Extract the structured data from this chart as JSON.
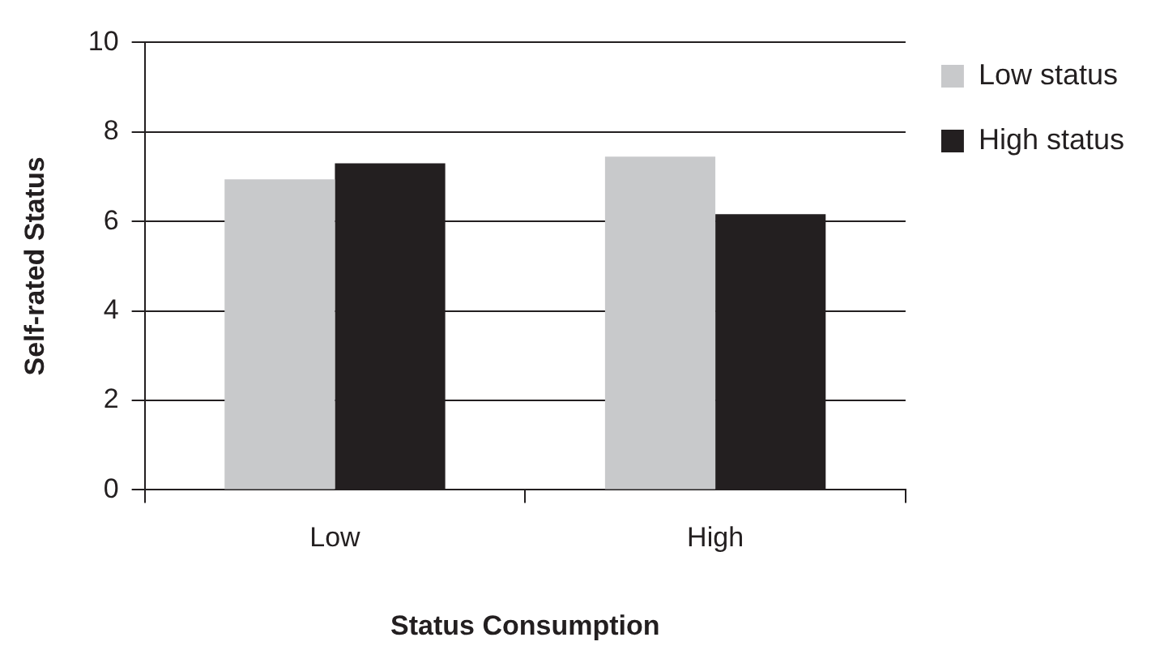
{
  "chart_data": {
    "type": "bar",
    "xlabel": "Status Consumption",
    "ylabel": "Self-rated Status",
    "categories": [
      "Low",
      "High"
    ],
    "series": [
      {
        "name": "Low status",
        "color": "#c8c9cb",
        "values": [
          6.94,
          7.45
        ]
      },
      {
        "name": "High status",
        "color": "#231f20",
        "values": [
          7.3,
          6.16
        ]
      }
    ],
    "ylim": [
      0,
      10
    ],
    "yticks": [
      0,
      2,
      4,
      6,
      8,
      10
    ],
    "grid": "y",
    "legend": "right"
  }
}
